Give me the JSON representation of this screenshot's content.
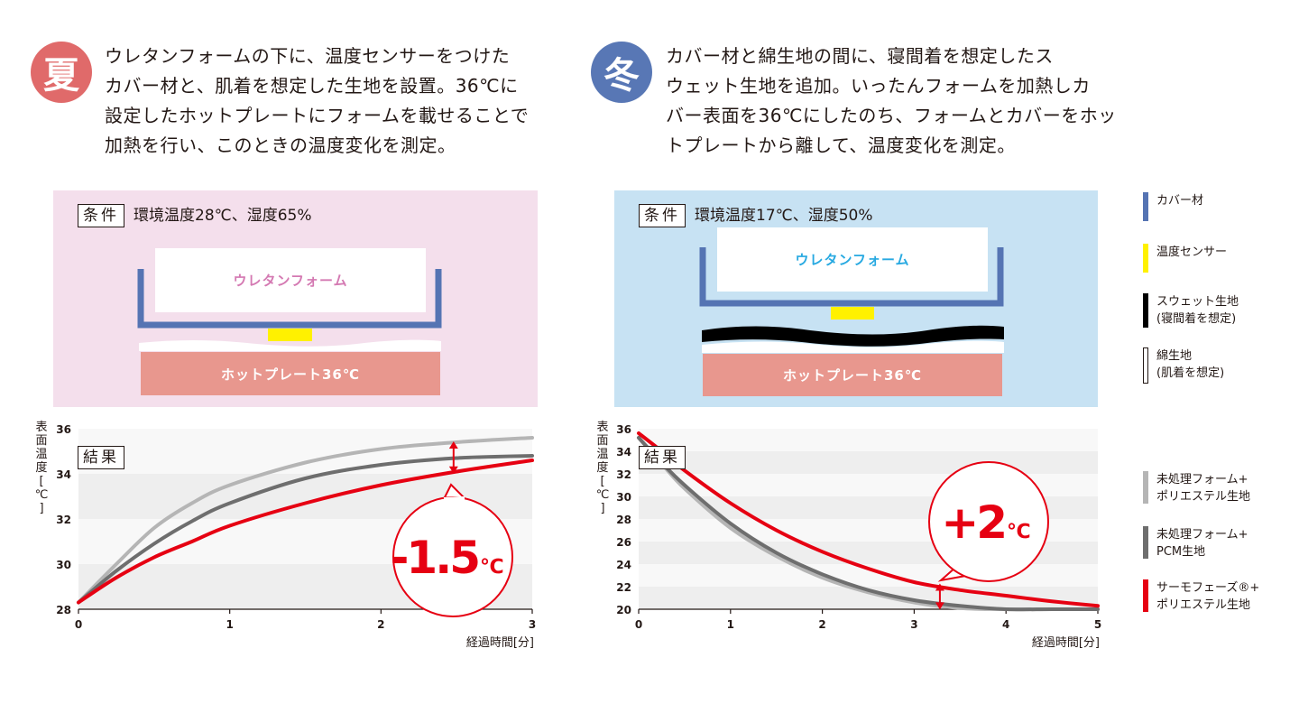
{
  "summer": {
    "badge": "夏",
    "color": "#e06a6a",
    "description": [
      "ウレタンフォームの下に、温度センサーをつけた",
      "カバー材と、肌着を想定した生地を設置。36℃に",
      "設定したホットプレートにフォームを載せることで",
      "加熱を行い、このときの温度変化を測定。"
    ],
    "condition_label": "条件",
    "condition_text": "環境温度28℃、湿度65%",
    "foam_label": "ウレタンフォーム",
    "plate_label": "ホットプレート36℃",
    "result_label": "結果",
    "diff_label": "-1.5",
    "diff_unit": "℃",
    "panel_color": "#f4dfec",
    "foam_text_color": "#d479b2"
  },
  "winter": {
    "badge": "冬",
    "color": "#5877b5",
    "description": [
      "カバー材と綿生地の間に、寝間着を想定したス",
      "ウェット生地を追加。いったんフォームを加熱しカ",
      "バー表面を36℃にしたのち、フォームとカバーをホッ",
      "トプレートから離して、温度変化を測定。"
    ],
    "condition_label": "条件",
    "condition_text": "環境温度17℃、湿度50%",
    "foam_label": "ウレタンフォーム",
    "plate_label": "ホットプレート36℃",
    "result_label": "結果",
    "diff_label": "+2",
    "diff_unit": "℃",
    "panel_color": "#c7e2f3",
    "foam_text_color": "#27a9e1"
  },
  "materials_legend": [
    {
      "lines": [
        "カバー材"
      ],
      "color": "#5574b3",
      "outline": false
    },
    {
      "lines": [
        "温度センサー"
      ],
      "color": "#fff100",
      "outline": false
    },
    {
      "lines": [
        "スウェット生地",
        "(寝間着を想定)"
      ],
      "color": "#000000",
      "outline": false
    },
    {
      "lines": [
        "綿生地",
        "(肌着を想定)"
      ],
      "color": "#ffffff",
      "outline": true
    }
  ],
  "series_legend": [
    {
      "lines": [
        "未処理フォーム+",
        "ポリエステル生地"
      ],
      "color": "#b5b5b5"
    },
    {
      "lines": [
        "未処理フォーム+",
        "PCM生地"
      ],
      "color": "#6e6e6e"
    },
    {
      "lines": [
        "サーモフェーズ®+",
        "ポリエステル生地"
      ],
      "color": "#e60012"
    }
  ],
  "axis_text": {
    "ylabel": [
      "表",
      "面",
      "温",
      "度",
      "[",
      "℃",
      "]"
    ],
    "xlabel": "経過時間[分]"
  },
  "chart_data": [
    {
      "type": "line",
      "title": "夏",
      "xlabel": "経過時間[分]",
      "ylabel": "表面温度[℃]",
      "xlim": [
        0,
        3
      ],
      "ylim": [
        28,
        36
      ],
      "x_ticks": [
        0,
        1,
        2,
        3
      ],
      "y_ticks": [
        28,
        30,
        32,
        34,
        36
      ],
      "grid": "alternating horizontal bands",
      "x": [
        0,
        0.25,
        0.5,
        0.75,
        1,
        1.5,
        2,
        2.5,
        3
      ],
      "series": [
        {
          "name": "未処理フォーム+ポリエステル生地",
          "color": "#b5b5b5",
          "values": [
            28.3,
            30.0,
            31.6,
            32.7,
            33.5,
            34.5,
            35.1,
            35.4,
            35.6
          ]
        },
        {
          "name": "未処理フォーム+PCM生地",
          "color": "#6e6e6e",
          "values": [
            28.3,
            29.7,
            30.9,
            31.9,
            32.7,
            33.8,
            34.4,
            34.7,
            34.8
          ]
        },
        {
          "name": "サーモフェーズ®+ポリエステル生地",
          "color": "#e60012",
          "values": [
            28.3,
            29.4,
            30.3,
            31.0,
            31.7,
            32.7,
            33.5,
            34.1,
            34.6
          ]
        }
      ],
      "annotation": "-1.5℃"
    },
    {
      "type": "line",
      "title": "冬",
      "xlabel": "経過時間[分]",
      "ylabel": "表面温度[℃]",
      "xlim": [
        0,
        5
      ],
      "ylim": [
        20,
        36
      ],
      "x_ticks": [
        0,
        1,
        2,
        3,
        4,
        5
      ],
      "y_ticks": [
        20,
        22,
        24,
        26,
        28,
        30,
        32,
        34,
        36
      ],
      "grid": "alternating horizontal bands",
      "x": [
        0,
        0.25,
        0.5,
        1,
        1.5,
        2,
        2.5,
        3,
        3.5,
        4,
        4.5,
        5
      ],
      "series": [
        {
          "name": "未処理フォーム+ポリエステル生地",
          "color": "#b5b5b5",
          "values": [
            35.2,
            32.9,
            30.7,
            27.2,
            24.7,
            22.8,
            21.5,
            20.6,
            20.1,
            20.0,
            20.0,
            20.0
          ]
        },
        {
          "name": "未処理フォーム+PCM生地",
          "color": "#6e6e6e",
          "values": [
            35.2,
            33.0,
            31.0,
            27.6,
            25.0,
            23.1,
            21.7,
            20.8,
            20.3,
            20.0,
            20.0,
            20.0
          ]
        },
        {
          "name": "サーモフェーズ®+ポリエステル生地",
          "color": "#e60012",
          "values": [
            35.6,
            34.0,
            32.3,
            29.4,
            27.0,
            25.1,
            23.6,
            22.4,
            21.7,
            21.2,
            20.7,
            20.3
          ]
        }
      ],
      "annotation": "+2℃"
    }
  ]
}
